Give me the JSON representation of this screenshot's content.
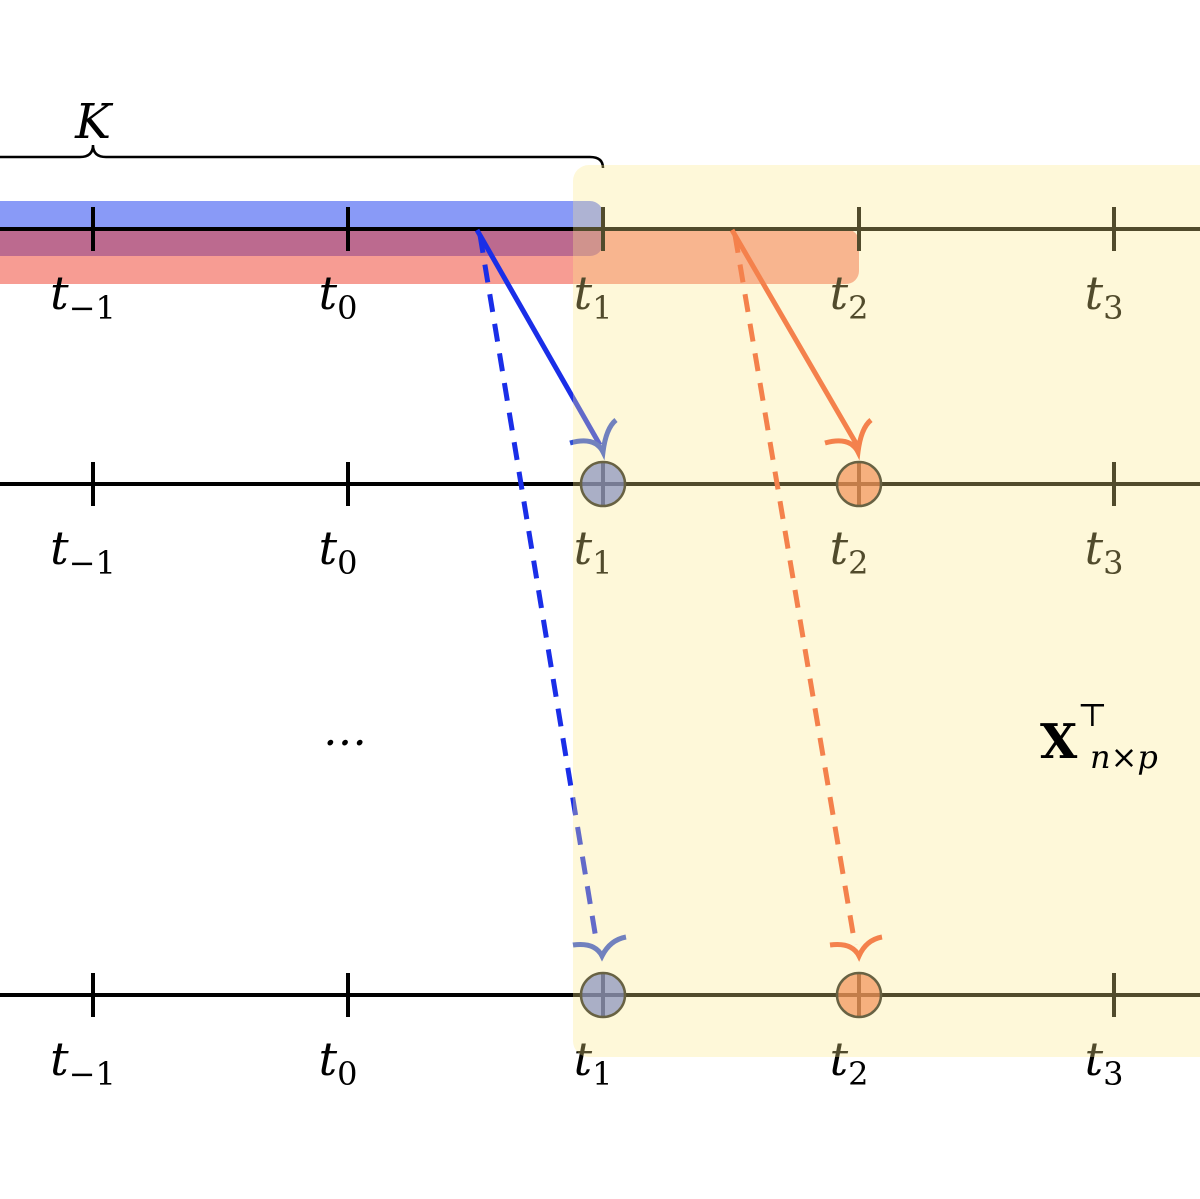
{
  "brace_label": "K",
  "rows": [
    {
      "ticks": [
        {
          "base": "t",
          "sub": "−1"
        },
        {
          "base": "t",
          "sub": "0"
        },
        {
          "base": "t",
          "sub": "1"
        },
        {
          "base": "t",
          "sub": "2"
        },
        {
          "base": "t",
          "sub": "3"
        }
      ]
    },
    {
      "ticks": [
        {
          "base": "t",
          "sub": "−1"
        },
        {
          "base": "t",
          "sub": "0"
        },
        {
          "base": "t",
          "sub": "1"
        },
        {
          "base": "t",
          "sub": "2"
        },
        {
          "base": "t",
          "sub": "3"
        }
      ]
    },
    {
      "ticks": [
        {
          "base": "t",
          "sub": "−1"
        },
        {
          "base": "t",
          "sub": "0"
        },
        {
          "base": "t",
          "sub": "1"
        },
        {
          "base": "t",
          "sub": "2"
        },
        {
          "base": "t",
          "sub": "3"
        }
      ]
    }
  ],
  "ellipsis": "…",
  "matrix_label": {
    "base": "X",
    "sup": "⊤",
    "sub": "n×p"
  }
}
